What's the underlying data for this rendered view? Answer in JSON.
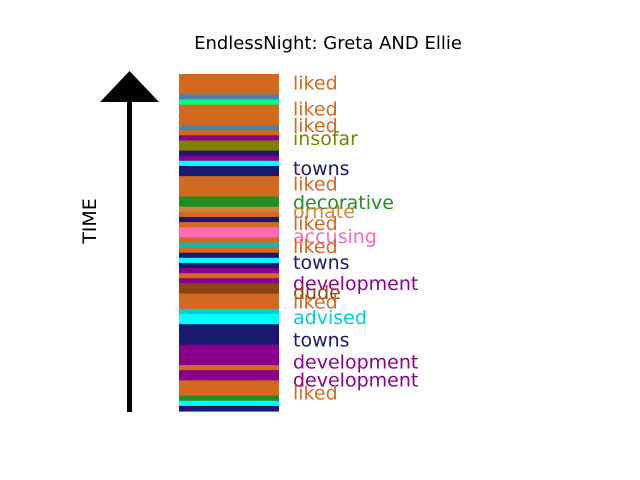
{
  "chart_data": {
    "type": "bar",
    "title": "EndlessNight: Greta AND Ellie",
    "ylabel": "TIME",
    "grid": false,
    "stripes": [
      {
        "color": "#d2691e"
      },
      {
        "color": "#d2691e"
      },
      {
        "color": "#d2691e"
      },
      {
        "color": "#d2691e"
      },
      {
        "color": "#4682b4"
      },
      {
        "color": "#00ff7f"
      },
      {
        "color": "#d2691e"
      },
      {
        "color": "#d2691e"
      },
      {
        "color": "#d2691e"
      },
      {
        "color": "#d2691e"
      },
      {
        "color": "#4682b4"
      },
      {
        "color": "#d2691e"
      },
      {
        "color": "#8b008b"
      },
      {
        "color": "#808000"
      },
      {
        "color": "#808000"
      },
      {
        "color": "#191970"
      },
      {
        "color": "#8b008b"
      },
      {
        "color": "#00ffff"
      },
      {
        "color": "#191970"
      },
      {
        "color": "#191970"
      },
      {
        "color": "#d2691e"
      },
      {
        "color": "#d2691e"
      },
      {
        "color": "#d2691e"
      },
      {
        "color": "#d2691e"
      },
      {
        "color": "#228b22"
      },
      {
        "color": "#228b22"
      },
      {
        "color": "#cd853f"
      },
      {
        "color": "#d2691e"
      },
      {
        "color": "#191970"
      },
      {
        "color": "#d2691e"
      },
      {
        "color": "#ff69b4"
      },
      {
        "color": "#ff69b4"
      },
      {
        "color": "#d2691e"
      },
      {
        "color": "#20b2aa"
      },
      {
        "color": "#d2691e"
      },
      {
        "color": "#191970"
      },
      {
        "color": "#00ffff"
      },
      {
        "color": "#191970"
      },
      {
        "color": "#8b008b"
      },
      {
        "color": "#d2691e"
      },
      {
        "color": "#8b008b"
      },
      {
        "color": "#8b4513"
      },
      {
        "color": "#8b4513"
      },
      {
        "color": "#d2691e"
      },
      {
        "color": "#d2691e"
      },
      {
        "color": "#d2691e"
      },
      {
        "color": "#00ced1"
      },
      {
        "color": "#00ffff"
      },
      {
        "color": "#00ffff"
      },
      {
        "color": "#191970"
      },
      {
        "color": "#191970"
      },
      {
        "color": "#191970"
      },
      {
        "color": "#191970"
      },
      {
        "color": "#8b008b"
      },
      {
        "color": "#8b008b"
      },
      {
        "color": "#8b008b"
      },
      {
        "color": "#8b008b"
      },
      {
        "color": "#d2691e"
      },
      {
        "color": "#8b008b"
      },
      {
        "color": "#8b008b"
      },
      {
        "color": "#d2691e"
      },
      {
        "color": "#d2691e"
      },
      {
        "color": "#d2691e"
      },
      {
        "color": "#228b22"
      },
      {
        "color": "#00ffff"
      },
      {
        "color": "#191970"
      }
    ],
    "labels": [
      {
        "text": "liked",
        "color": "#d2691e",
        "position": 0.03
      },
      {
        "text": "liked",
        "color": "#d2691e",
        "position": 0.107
      },
      {
        "text": "liked",
        "color": "#d2691e",
        "position": 0.156
      },
      {
        "text": "insofar",
        "color": "#808000",
        "position": 0.195
      },
      {
        "text": "towns",
        "color": "#191970",
        "position": 0.283
      },
      {
        "text": "liked",
        "color": "#d2691e",
        "position": 0.33
      },
      {
        "text": "decorative",
        "color": "#228b22",
        "position": 0.384
      },
      {
        "text": "ornate",
        "color": "#cd853f",
        "position": 0.411
      },
      {
        "text": "liked",
        "color": "#d2691e",
        "position": 0.446
      },
      {
        "text": "accusing",
        "color": "#ff69b4",
        "position": 0.485
      },
      {
        "text": "liked",
        "color": "#d2691e",
        "position": 0.515
      },
      {
        "text": "towns",
        "color": "#191970",
        "position": 0.563
      },
      {
        "text": "development",
        "color": "#8b008b",
        "position": 0.625
      },
      {
        "text": "dude",
        "color": "#8b4513",
        "position": 0.652
      },
      {
        "text": "liked",
        "color": "#d2691e",
        "position": 0.679
      },
      {
        "text": "advised",
        "color": "#00ced1",
        "position": 0.726
      },
      {
        "text": "towns",
        "color": "#191970",
        "position": 0.792
      },
      {
        "text": "development",
        "color": "#8b008b",
        "position": 0.857
      },
      {
        "text": "development",
        "color": "#8b008b",
        "position": 0.911
      },
      {
        "text": "liked",
        "color": "#d2691e",
        "position": 0.95
      }
    ]
  }
}
